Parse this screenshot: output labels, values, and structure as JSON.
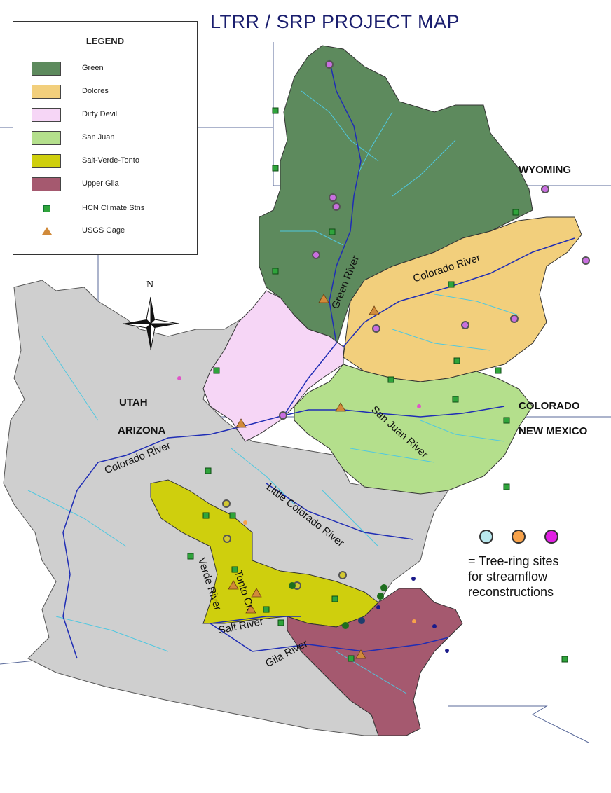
{
  "title": "LTRR / SRP PROJECT MAP",
  "legend": {
    "title": "LEGEND",
    "items": [
      {
        "label": "Green",
        "color": "#5d8a5d"
      },
      {
        "label": "Dolores",
        "color": "#f2cf7c"
      },
      {
        "label": "Dirty Devil",
        "color": "#f6d6f6"
      },
      {
        "label": "San Juan",
        "color": "#b4df8c"
      },
      {
        "label": "Salt-Verde-Tonto",
        "color": "#cfcf0d"
      },
      {
        "label": "Upper Gila",
        "color": "#a5596f"
      },
      {
        "label": "HCN Climate Stns",
        "symbol": "green-square"
      },
      {
        "label": "USGS Gage",
        "symbol": "orange-triangle"
      }
    ]
  },
  "compass": {
    "north": "N"
  },
  "states": {
    "wyoming": "WYOMING",
    "utah": "UTAH",
    "arizona": "ARIZONA",
    "colorado": "COLORADO",
    "new_mexico": "NEW MEXICO"
  },
  "rivers": {
    "green": "Green River",
    "colorado_upper": "Colorado River",
    "colorado_lower": "Colorado River",
    "san_juan": "San Juan River",
    "little_colorado": "Little Colorado River",
    "verde": "Verde River",
    "tonto": "Tonto Cr.",
    "salt": "Salt River",
    "gila": "Gila River"
  },
  "tree_ring_note": {
    "line1": "= Tree-ring sites",
    "line2": "for streamflow",
    "line3": "reconstructions",
    "colors": [
      "#b9e8ee",
      "#f7a24a",
      "#e21fe4"
    ]
  },
  "colors": {
    "grey_region": "#cfcfcf",
    "river_blue": "#4fc8e0",
    "main_river": "#1f2db5",
    "border": "#555555"
  }
}
